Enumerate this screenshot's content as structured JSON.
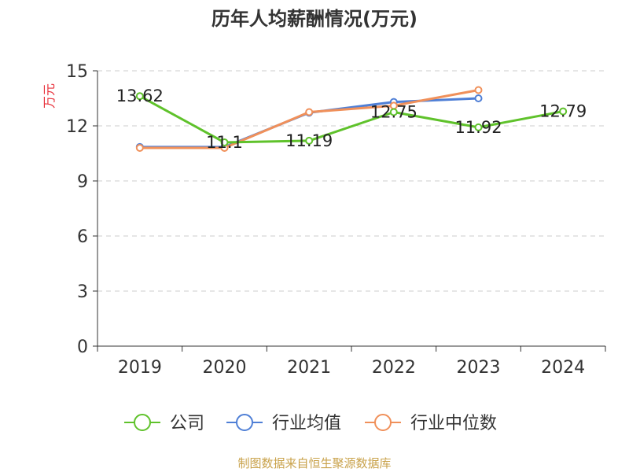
{
  "chart_data": {
    "type": "line",
    "title": "历年人均薪酬情况(万元)",
    "ylabel": "万元",
    "xlabel": "",
    "categories": [
      "2019",
      "2020",
      "2021",
      "2022",
      "2023",
      "2024"
    ],
    "ylim": [
      0,
      15
    ],
    "yticks": [
      0,
      3,
      6,
      9,
      12,
      15
    ],
    "grid": true,
    "legend_position": "bottom",
    "series": [
      {
        "name": "公司",
        "color": "#5fc22b",
        "values": [
          13.62,
          11.1,
          11.19,
          12.75,
          11.92,
          12.79
        ],
        "labels": [
          "13.62",
          "11.1",
          "11.19",
          "12.75",
          "11.92",
          "12.79"
        ]
      },
      {
        "name": "行业均值",
        "color": "#4f7fd6",
        "values": [
          10.85,
          10.85,
          12.72,
          13.3,
          13.5,
          null
        ]
      },
      {
        "name": "行业中位数",
        "color": "#f0905a",
        "values": [
          10.8,
          10.8,
          12.75,
          13.1,
          13.95,
          null
        ]
      }
    ]
  },
  "source_note": "制图数据来自恒生聚源数据库"
}
